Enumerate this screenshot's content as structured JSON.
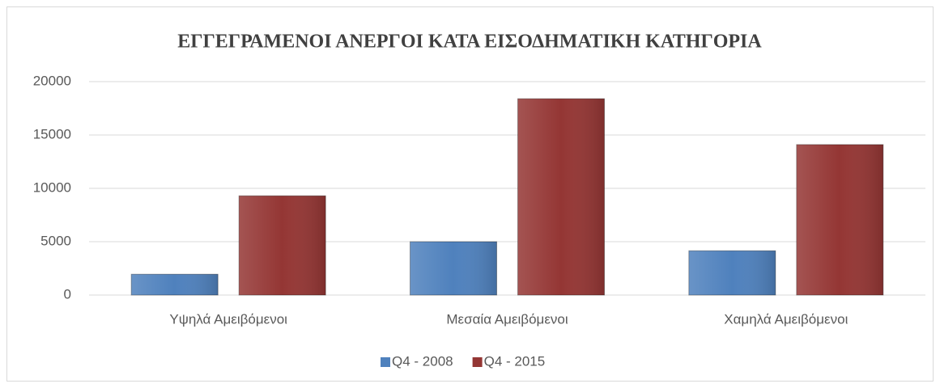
{
  "chart_data": {
    "type": "bar",
    "title": "ΕΓΓΕΓΡΑΜΕΝΟΙ ΑΝΕΡΓΟΙ ΚΑΤΑ ΕΙΣΟΔΗΜΑΤΙΚΗ ΚΑΤΗΓΟΡΙΑ",
    "categories": [
      "Υψηλά Αμειβόμενοι",
      "Μεσαία Αμειβόμενοι",
      "Χαμηλά Αμειβόμενοι"
    ],
    "series": [
      {
        "name": "Q4 - 2008",
        "color": "#4f81bd",
        "values": [
          1950,
          5000,
          4150
        ]
      },
      {
        "name": "Q4 - 2015",
        "color": "#943634",
        "values": [
          9300,
          18400,
          14100
        ]
      }
    ],
    "ylim": [
      0,
      20000
    ],
    "yticks": [
      0,
      5000,
      10000,
      15000,
      20000
    ],
    "grid": true,
    "legend": "bottom"
  }
}
